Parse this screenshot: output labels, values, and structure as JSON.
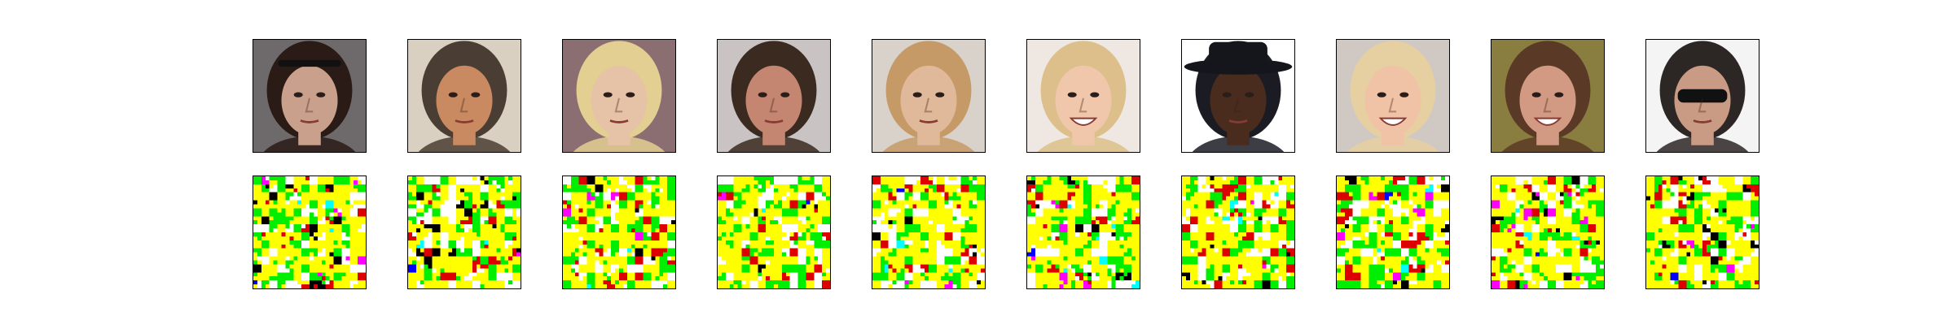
{
  "figure": {
    "rows": [
      {
        "id": "faces",
        "kind": "face-photo",
        "count": 10
      },
      {
        "id": "maps",
        "kind": "color-noise-map",
        "count": 10
      }
    ],
    "faces": [
      {
        "skin": "#c9a08c",
        "hair": "#2a1b16",
        "bg": "#6e6a6b",
        "feature": "headband"
      },
      {
        "skin": "#c98a62",
        "hair": "#4a3d33",
        "bg": "#dad0c2",
        "feature": "older-man"
      },
      {
        "skin": "#e6c2a6",
        "hair": "#e3cf92",
        "bg": "#8a6e72",
        "feature": "blonde"
      },
      {
        "skin": "#c48670",
        "hair": "#3b2a20",
        "bg": "#c9c3c3",
        "feature": "short-hair"
      },
      {
        "skin": "#e0b89a",
        "hair": "#c59a66",
        "bg": "#d9d2cb",
        "feature": "bob"
      },
      {
        "skin": "#f0c7aa",
        "hair": "#dcbf8a",
        "bg": "#efe8e2",
        "feature": "smile"
      },
      {
        "skin": "#4a2c1e",
        "hair": "#1b1b24",
        "bg": "#ffffff",
        "feature": "hat"
      },
      {
        "skin": "#f0c3a6",
        "hair": "#e6cfa0",
        "bg": "#cfc8c3",
        "feature": "smile"
      },
      {
        "skin": "#d29a82",
        "hair": "#5a3a26",
        "bg": "#8a7d40",
        "feature": "smile"
      },
      {
        "skin": "#c99a84",
        "hair": "#2c2624",
        "bg": "#f4f4f4",
        "feature": "sunglasses"
      }
    ],
    "map_palette": {
      "yellow": "#ffff00",
      "green": "#00ee00",
      "white": "#ffffff",
      "red": "#dd0000",
      "black": "#000000",
      "magenta": "#ff00ff",
      "cyan": "#00ffff",
      "blue": "#0000ff"
    }
  }
}
